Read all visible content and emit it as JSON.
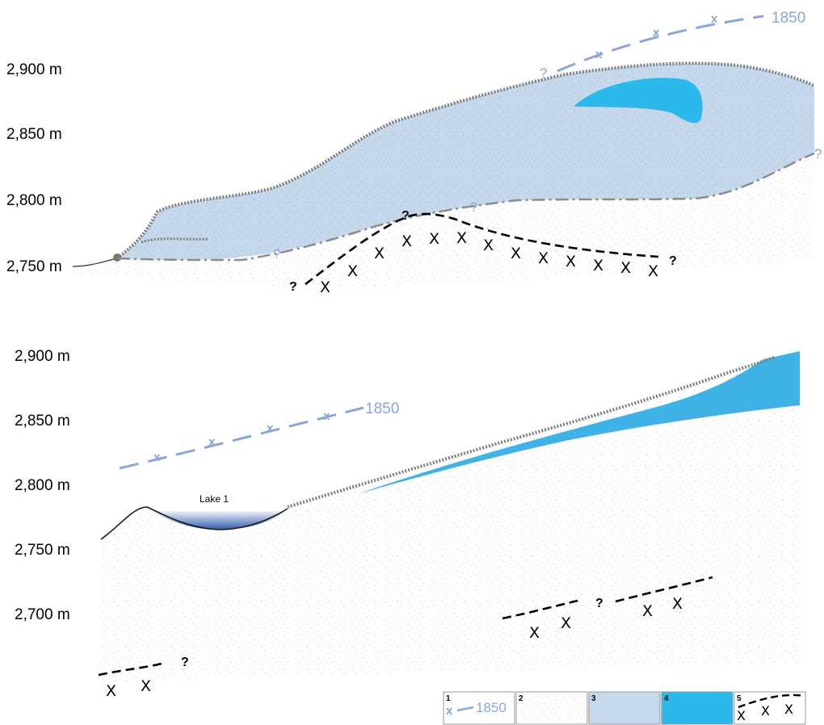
{
  "top_profile": {
    "altitude_labels": [
      "2,900 m",
      "2,850 m",
      "2,800 m",
      "2,750 m"
    ],
    "year_label": "1850",
    "uncertainty_mark": "?"
  },
  "bottom_profile": {
    "altitude_labels": [
      "2,900 m",
      "2,850 m",
      "2,800 m",
      "2,750 m",
      "2,700 m"
    ],
    "year_label": "1850",
    "lake_label": "Lake 1",
    "uncertainty_mark": "?"
  },
  "legend": {
    "items": [
      {
        "number": "1",
        "text": "1850"
      },
      {
        "number": "2"
      },
      {
        "number": "3",
        "color": "#c5d8ec"
      },
      {
        "number": "4",
        "color": "#2bb8ea"
      },
      {
        "number": "5"
      }
    ]
  },
  "colors": {
    "ice_body": "#c5d8ec",
    "ice_core": "#2bb8ea",
    "ice_wedge": "#3fb3e8",
    "limit_1850": "#8aa6d9",
    "lake_deep": "#2f5aaa"
  }
}
